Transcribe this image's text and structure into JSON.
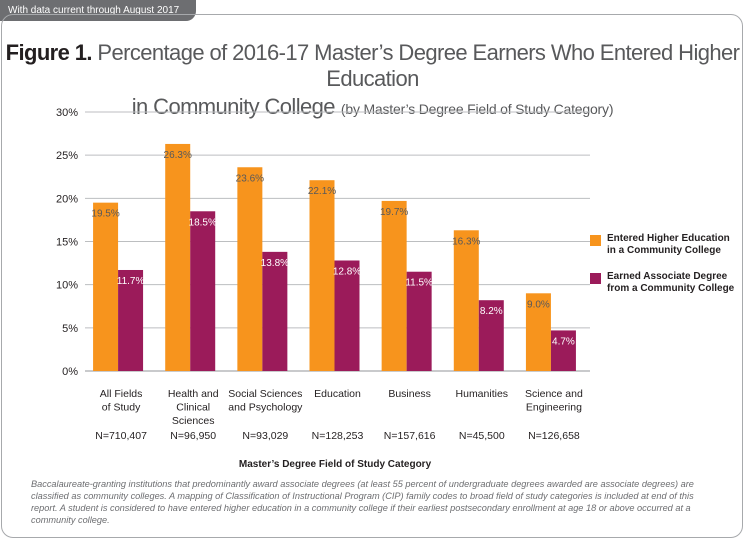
{
  "header": {
    "tab_text": "With data current through August 2017"
  },
  "title": {
    "figure_label": "Figure 1.",
    "line1": " Percentage of 2016-17 Master’s Degree Earners Who Entered Higher Education",
    "line2": "in Community College",
    "subtitle": "(by Master’s Degree Field of Study Category)"
  },
  "footnote": "Baccalaureate-granting institutions that predominantly award associate degrees (at least 55 percent of undergraduate degrees awarded are associate degrees) are classified as community  colleges. A mapping of Classification of Instructional Program (CIP) family codes to broad field of study categories is included at end of this report. A student is considered to have entered higher education in a community college if their earliest postsecondary enrollment at age 18 or above occurred at a community college.",
  "colors": {
    "series1": "#f7941d",
    "series2": "#9b1b5a",
    "grid": "#bcbec0",
    "axis": "#939598"
  },
  "chart_data": {
    "type": "bar",
    "title": "Percentage of 2016-17 Master’s Degree Earners Who Entered Higher Education in Community College",
    "xlabel": "Master’s Degree Field of Study Category",
    "ylabel": "",
    "ylim": [
      0,
      30
    ],
    "yticks": [
      "0%",
      "5%",
      "10%",
      "15%",
      "20%",
      "25%",
      "30%"
    ],
    "grid": true,
    "legend_position": "right",
    "categories": [
      [
        "All Fields",
        "of Study"
      ],
      [
        "Health and",
        "Clinical",
        "Sciences"
      ],
      [
        "Social Sciences",
        "and Psychology"
      ],
      [
        "Education"
      ],
      [
        "Business"
      ],
      [
        "Humanities"
      ],
      [
        "Science and",
        "Engineering"
      ]
    ],
    "n_labels": [
      "N=710,407",
      "N=96,950",
      "N=93,029",
      "N=128,253",
      "N=157,616",
      "N=45,500",
      "N=126,658"
    ],
    "series": [
      {
        "name": "Entered Higher Education\nin a Community College",
        "values": [
          19.5,
          26.3,
          23.6,
          22.1,
          19.7,
          16.3,
          9.0
        ],
        "labels": [
          "19.5%",
          "26.3%",
          "23.6%",
          "22.1%",
          "19.7%",
          "16.3%",
          "9.0%"
        ]
      },
      {
        "name": "Earned Associate Degree\nfrom a Community College",
        "values": [
          11.7,
          18.5,
          13.8,
          12.8,
          11.5,
          8.2,
          4.7
        ],
        "labels": [
          "11.7%",
          "18.5%",
          "13.8%",
          "12.8%",
          "11.5%",
          "8.2%",
          "4.7%"
        ]
      }
    ]
  }
}
